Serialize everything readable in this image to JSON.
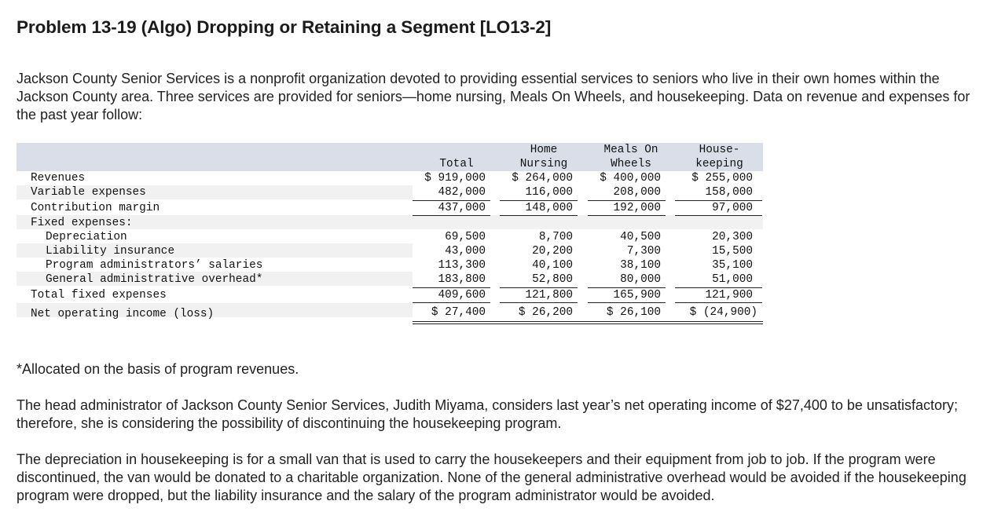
{
  "title": "Problem 13-19 (Algo) Dropping or Retaining a Segment [LO13-2]",
  "intro": "Jackson County Senior Services is a nonprofit organization devoted to providing essential services to seniors who live in their own homes within the Jackson County area. Three services are provided for seniors—home nursing, Meals On Wheels, and housekeeping. Data on revenue and expenses for the past year follow:",
  "table": {
    "headers": {
      "total": [
        "Total"
      ],
      "home_nursing": [
        "Home",
        "Nursing"
      ],
      "meals_on_wheels": [
        "Meals On",
        "Wheels"
      ],
      "housekeeping": [
        "House-",
        "keeping"
      ]
    },
    "rows": {
      "revenues": {
        "label": "Revenues",
        "total": "$ 919,000",
        "home_nursing": "$ 264,000",
        "meals_on_wheels": "$ 400,000",
        "housekeeping": "$ 255,000"
      },
      "variable_expenses": {
        "label": "Variable expenses",
        "total": "482,000",
        "home_nursing": "116,000",
        "meals_on_wheels": "208,000",
        "housekeeping": "158,000"
      },
      "contribution_margin": {
        "label": "Contribution margin",
        "total": "437,000",
        "home_nursing": "148,000",
        "meals_on_wheels": "192,000",
        "housekeeping": "97,000"
      },
      "fixed_expenses": {
        "label": "Fixed expenses:"
      },
      "depreciation": {
        "label": "Depreciation",
        "total": "69,500",
        "home_nursing": "8,700",
        "meals_on_wheels": "40,500",
        "housekeeping": "20,300"
      },
      "liability_insurance": {
        "label": "Liability insurance",
        "total": "43,000",
        "home_nursing": "20,200",
        "meals_on_wheels": "7,300",
        "housekeeping": "15,500"
      },
      "program_admin_salaries": {
        "label": "Program administrators’ salaries",
        "total": "113,300",
        "home_nursing": "40,100",
        "meals_on_wheels": "38,100",
        "housekeeping": "35,100"
      },
      "general_admin_overhead": {
        "label": "General administrative overhead*",
        "total": "183,800",
        "home_nursing": "52,800",
        "meals_on_wheels": "80,000",
        "housekeeping": "51,000"
      },
      "total_fixed_expenses": {
        "label": "Total fixed expenses",
        "total": "409,600",
        "home_nursing": "121,800",
        "meals_on_wheels": "165,900",
        "housekeeping": "121,900"
      },
      "net_operating_income": {
        "label": "Net operating income (loss)",
        "total": "$ 27,400",
        "home_nursing": "$ 26,200",
        "meals_on_wheels": "$ 26,100",
        "housekeeping": "$ (24,900)"
      }
    }
  },
  "footnote": "*Allocated on the basis of program revenues.",
  "para2": "The head administrator of Jackson County Senior Services, Judith Miyama, considers last year’s net operating income of $27,400 to be unsatisfactory; therefore, she is considering the possibility of discontinuing the housekeeping program.",
  "para3": "The depreciation in housekeeping is for a small van that is used to carry the housekeepers and their equipment from job to job. If the program were discontinued, the van would be donated to a charitable organization. None of the general administrative overhead would be avoided if the housekeeping program were dropped, but the liability insurance and the salary of the program administrator would be avoided.",
  "colors": {
    "header_band": "#d9dee9",
    "alt_row_band": "#f1f1f1",
    "text": "#222222"
  }
}
